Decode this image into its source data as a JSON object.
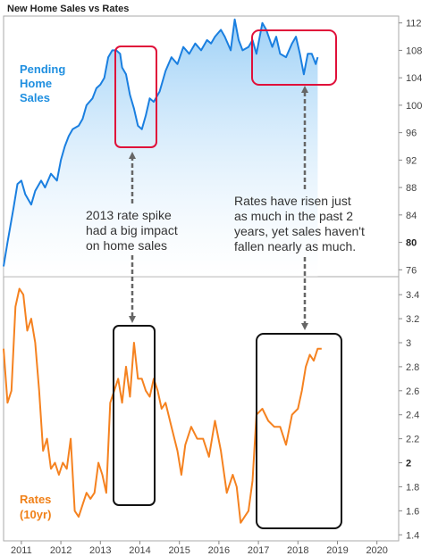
{
  "chart_data": [
    {
      "type": "area",
      "title": "New Home Sales vs Rates",
      "series_label": [
        "Pending",
        "Home",
        "Sales"
      ],
      "ylim": [
        75,
        113
      ],
      "yticks": [
        76,
        80,
        84,
        88,
        92,
        96,
        100,
        104,
        108,
        112
      ],
      "bold_ticks": [
        80
      ],
      "x": [
        2010.55,
        2010.65,
        2010.8,
        2010.9,
        2011.0,
        2011.1,
        2011.25,
        2011.35,
        2011.5,
        2011.6,
        2011.75,
        2011.9,
        2012.0,
        2012.1,
        2012.2,
        2012.3,
        2012.45,
        2012.55,
        2012.65,
        2012.8,
        2012.9,
        2013.0,
        2013.1,
        2013.2,
        2013.3,
        2013.4,
        2013.5,
        2013.55,
        2013.65,
        2013.75,
        2013.85,
        2013.95,
        2014.05,
        2014.15,
        2014.25,
        2014.35,
        2014.5,
        2014.65,
        2014.8,
        2014.95,
        2015.1,
        2015.25,
        2015.4,
        2015.55,
        2015.7,
        2015.8,
        2015.9,
        2016.05,
        2016.15,
        2016.3,
        2016.4,
        2016.5,
        2016.6,
        2016.75,
        2016.85,
        2016.95,
        2017.1,
        2017.2,
        2017.35,
        2017.45,
        2017.55,
        2017.7,
        2017.85,
        2017.95,
        2018.05,
        2018.15,
        2018.25,
        2018.35,
        2018.45,
        2018.5
      ],
      "values": [
        76.5,
        80,
        85,
        88.5,
        89,
        87,
        85.5,
        87.5,
        89,
        88,
        90,
        89,
        92,
        94,
        95.5,
        96.5,
        97,
        98,
        100,
        101,
        102.5,
        103,
        104,
        107,
        108,
        108,
        107.5,
        105.5,
        104.5,
        101.5,
        99.5,
        97,
        96.5,
        98.5,
        101,
        100.5,
        102,
        105,
        107,
        106,
        108.5,
        107.5,
        109,
        108,
        109.5,
        109,
        110,
        111,
        110,
        108,
        112.5,
        109.5,
        108,
        108.5,
        109.5,
        107.5,
        112,
        111,
        108.5,
        110,
        107.5,
        107,
        109,
        110,
        107.5,
        104.5,
        107.5,
        107.5,
        106,
        107
      ]
    },
    {
      "type": "line",
      "series_label": [
        "Rates",
        "(10yr)"
      ],
      "ylim": [
        1.35,
        3.55
      ],
      "yticks": [
        1.4,
        1.6,
        1.8,
        2.0,
        2.2,
        2.4,
        2.6,
        2.8,
        3.0,
        3.2,
        3.4
      ],
      "ytick_labels": [
        "1.4",
        "1.6",
        "1.8",
        "2",
        "2.2",
        "2.4",
        "2.6",
        "2.8",
        "3",
        "3.2",
        "3.4"
      ],
      "bold_ticks": [
        "2"
      ],
      "xlim": [
        2010.55,
        2020.55
      ],
      "xticks": [
        "2011",
        "2012",
        "2013",
        "2014",
        "2015",
        "2016",
        "2017",
        "2018",
        "2019",
        "2020"
      ],
      "x": [
        2010.55,
        2010.65,
        2010.75,
        2010.85,
        2010.95,
        2011.05,
        2011.15,
        2011.25,
        2011.35,
        2011.45,
        2011.55,
        2011.65,
        2011.75,
        2011.85,
        2011.95,
        2012.05,
        2012.15,
        2012.25,
        2012.35,
        2012.45,
        2012.55,
        2012.65,
        2012.75,
        2012.85,
        2012.95,
        2013.05,
        2013.15,
        2013.25,
        2013.35,
        2013.45,
        2013.55,
        2013.65,
        2013.75,
        2013.85,
        2013.95,
        2014.05,
        2014.15,
        2014.25,
        2014.35,
        2014.45,
        2014.55,
        2014.65,
        2014.8,
        2014.95,
        2015.05,
        2015.15,
        2015.3,
        2015.45,
        2015.6,
        2015.75,
        2015.9,
        2016.05,
        2016.2,
        2016.35,
        2016.45,
        2016.55,
        2016.65,
        2016.75,
        2016.85,
        2016.95,
        2017.1,
        2017.25,
        2017.4,
        2017.55,
        2017.7,
        2017.85,
        2018.0,
        2018.1,
        2018.2,
        2018.3,
        2018.4,
        2018.5,
        2018.6
      ],
      "values": [
        2.95,
        2.5,
        2.6,
        3.3,
        3.45,
        3.4,
        3.1,
        3.2,
        3.0,
        2.6,
        2.1,
        2.2,
        1.95,
        2.0,
        1.9,
        2.0,
        1.95,
        2.2,
        1.6,
        1.55,
        1.65,
        1.75,
        1.7,
        1.75,
        2.0,
        1.9,
        1.75,
        2.5,
        2.6,
        2.7,
        2.5,
        2.8,
        2.55,
        3.0,
        2.7,
        2.7,
        2.6,
        2.55,
        2.7,
        2.6,
        2.45,
        2.5,
        2.3,
        2.1,
        1.9,
        2.15,
        2.3,
        2.2,
        2.2,
        2.05,
        2.35,
        2.1,
        1.75,
        1.9,
        1.8,
        1.5,
        1.55,
        1.6,
        1.85,
        2.4,
        2.45,
        2.35,
        2.3,
        2.3,
        2.15,
        2.4,
        2.45,
        2.6,
        2.8,
        2.9,
        2.85,
        2.95,
        2.95
      ]
    }
  ],
  "annotations": {
    "left": [
      "2013 rate spike",
      "had a big impact",
      "on home sales"
    ],
    "right": [
      "Rates have risen just",
      "as much in the past 2",
      "years, yet sales haven't",
      "fallen nearly as much."
    ]
  },
  "colors": {
    "sales_line": "#1a7fe0",
    "sales_fill_top": "#8cc8f5",
    "sales_fill_bottom": "#ffffff",
    "rates_line": "#f58220",
    "highlight_red": "#e0103a",
    "highlight_black": "#111111",
    "arrow": "#666666"
  }
}
